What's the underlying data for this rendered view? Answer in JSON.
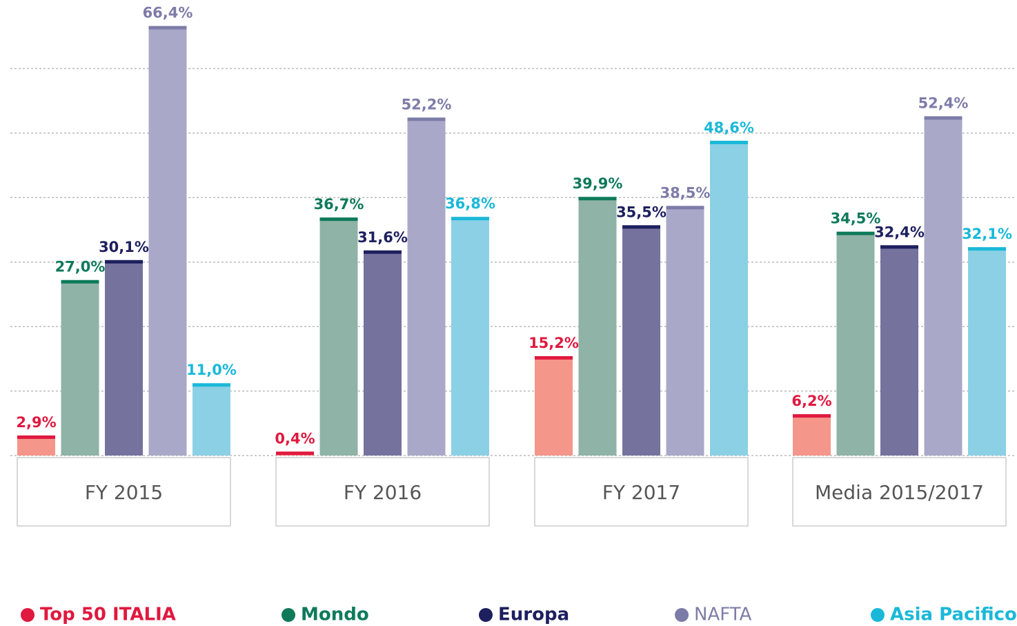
{
  "chart_data": {
    "type": "bar",
    "categories": [
      "FY 2015",
      "FY 2016",
      "FY 2017",
      "Media 2015/2017"
    ],
    "series": [
      {
        "name": "Top 50 ITALIA",
        "color": "#f4968a",
        "label_color": "#e0193f",
        "values": [
          2.9,
          0.4,
          15.2,
          6.2
        ],
        "value_labels": [
          "2,9%",
          "0,4%",
          "15,2%",
          "6,2%"
        ]
      },
      {
        "name": "Mondo",
        "color": "#8fb3a6",
        "label_color": "#0e7a5a",
        "values": [
          27.0,
          36.7,
          39.9,
          34.5
        ],
        "value_labels": [
          "27,0%",
          "36,7%",
          "39,9%",
          "34,5%"
        ]
      },
      {
        "name": "Europa",
        "color": "#75729e",
        "label_color": "#1d1f5e",
        "values": [
          30.1,
          31.6,
          35.5,
          32.4
        ],
        "value_labels": [
          "30,1%",
          "31,6%",
          "35,5%",
          "32,4%"
        ]
      },
      {
        "name": "NAFTA",
        "color": "#a9a8c8",
        "label_color": "#7d7ca8",
        "values": [
          66.4,
          52.2,
          38.5,
          52.4
        ],
        "value_labels": [
          "66,4%",
          "52,2%",
          "38,5%",
          "52,4%"
        ]
      },
      {
        "name": "Asia Pacifico",
        "color": "#8bd0e4",
        "label_color": "#1ab8d8",
        "values": [
          11.0,
          36.8,
          48.6,
          32.1
        ],
        "value_labels": [
          "11,0%",
          "36,8%",
          "48,6%",
          "32,1%"
        ]
      }
    ],
    "ylim": [
      0,
      70
    ],
    "yticks": [
      0,
      10,
      20,
      30,
      40,
      50,
      60
    ],
    "grid": true,
    "legend": "bottom"
  }
}
